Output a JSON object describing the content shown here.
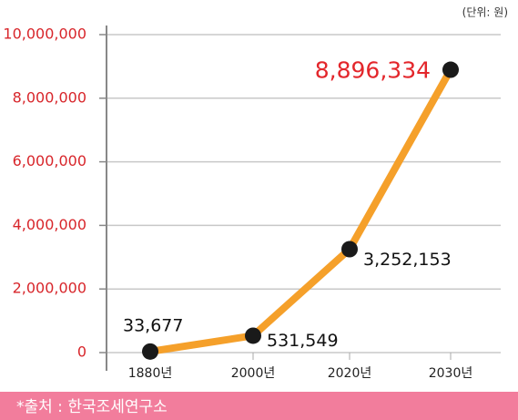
{
  "chart_data": {
    "type": "line",
    "unit_note": "(단위: 원)",
    "categories": [
      "1880년",
      "2000년",
      "2020년",
      "2030년"
    ],
    "values": [
      33677,
      531549,
      3252153,
      8896334
    ],
    "value_labels": [
      "33,677",
      "531,549",
      "3,252,153",
      "8,896,334"
    ],
    "color": "#f5a02a",
    "marker_color": "#1a1a1a",
    "ylim": [
      0,
      10000000
    ],
    "yticks": [
      0,
      {
        "value": 2000000,
        "label": "2,000,000"
      },
      {
        "value": 4000000,
        "label": "4,000,000"
      },
      {
        "value": 6000000,
        "label": "6,000,000"
      },
      {
        "value": 8000000,
        "label": "8,000,000"
      },
      {
        "value": 10000000,
        "label": "10,000,000"
      }
    ],
    "grid": true,
    "source": "*출처 : 한국조세연구소"
  }
}
